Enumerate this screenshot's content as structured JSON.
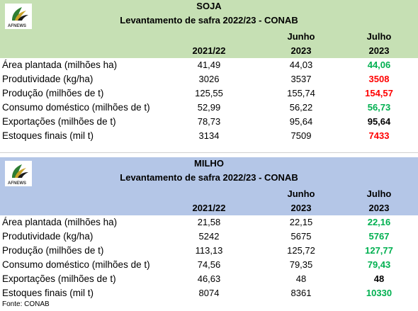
{
  "tables": [
    {
      "crop": "SOJA",
      "subtitle": "Levantamento de safra 2022/23 - CONAB",
      "logo_text": "AFNEWS",
      "col_top": [
        "",
        "Junho",
        "Julho"
      ],
      "col_bottom": [
        "2021/22",
        "2023",
        "2023"
      ],
      "rows": [
        {
          "label": "Área plantada (milhões ha)",
          "v1": "41,49",
          "v2": "44,03",
          "v3": "44,06",
          "color": "green"
        },
        {
          "label": "Produtividade (kg/ha)",
          "v1": "3026",
          "v2": "3537",
          "v3": "3508",
          "color": "red"
        },
        {
          "label": "Produção (milhões de t)",
          "v1": "125,55",
          "v2": "155,74",
          "v3": "154,57",
          "color": "red"
        },
        {
          "label": "Consumo doméstico (milhões de t)",
          "v1": "52,99",
          "v2": "56,22",
          "v3": "56,73",
          "color": "green"
        },
        {
          "label": "Exportações (milhões de t)",
          "v1": "78,73",
          "v2": "95,64",
          "v3": "95,64",
          "color": "black"
        },
        {
          "label": "Estoques finais (mil t)",
          "v1": "3134",
          "v2": "7509",
          "v3": "7433",
          "color": "red"
        }
      ]
    },
    {
      "crop": "MILHO",
      "subtitle": "Levantamento de safra 2022/23 - CONAB",
      "logo_text": "AFNEWS",
      "col_top": [
        "",
        "Junho",
        "Julho"
      ],
      "col_bottom": [
        "2021/22",
        "2023",
        "2023"
      ],
      "rows": [
        {
          "label": "Área plantada (milhões ha)",
          "v1": "21,58",
          "v2": "22,15",
          "v3": "22,16",
          "color": "green"
        },
        {
          "label": "Produtividade (kg/ha)",
          "v1": "5242",
          "v2": "5675",
          "v3": "5767",
          "color": "green"
        },
        {
          "label": "Produção (milhões de t)",
          "v1": "113,13",
          "v2": "125,72",
          "v3": "127,77",
          "color": "green"
        },
        {
          "label": "Consumo doméstico (milhões de t)",
          "v1": "74,56",
          "v2": "79,35",
          "v3": "79,43",
          "color": "green"
        },
        {
          "label": "Exportações (milhões de t)",
          "v1": "46,63",
          "v2": "48",
          "v3": "48",
          "color": "black"
        },
        {
          "label": "Estoques finais (mil t)",
          "v1": "8074",
          "v2": "8361",
          "v3": "10330",
          "color": "green"
        }
      ]
    }
  ],
  "source": "Fonte: CONAB",
  "colors": {
    "increase": "#00b050",
    "decrease": "#ff0000",
    "unchanged": "#000000",
    "soja_header": "#c6e0b4",
    "milho_header": "#b4c6e7"
  }
}
